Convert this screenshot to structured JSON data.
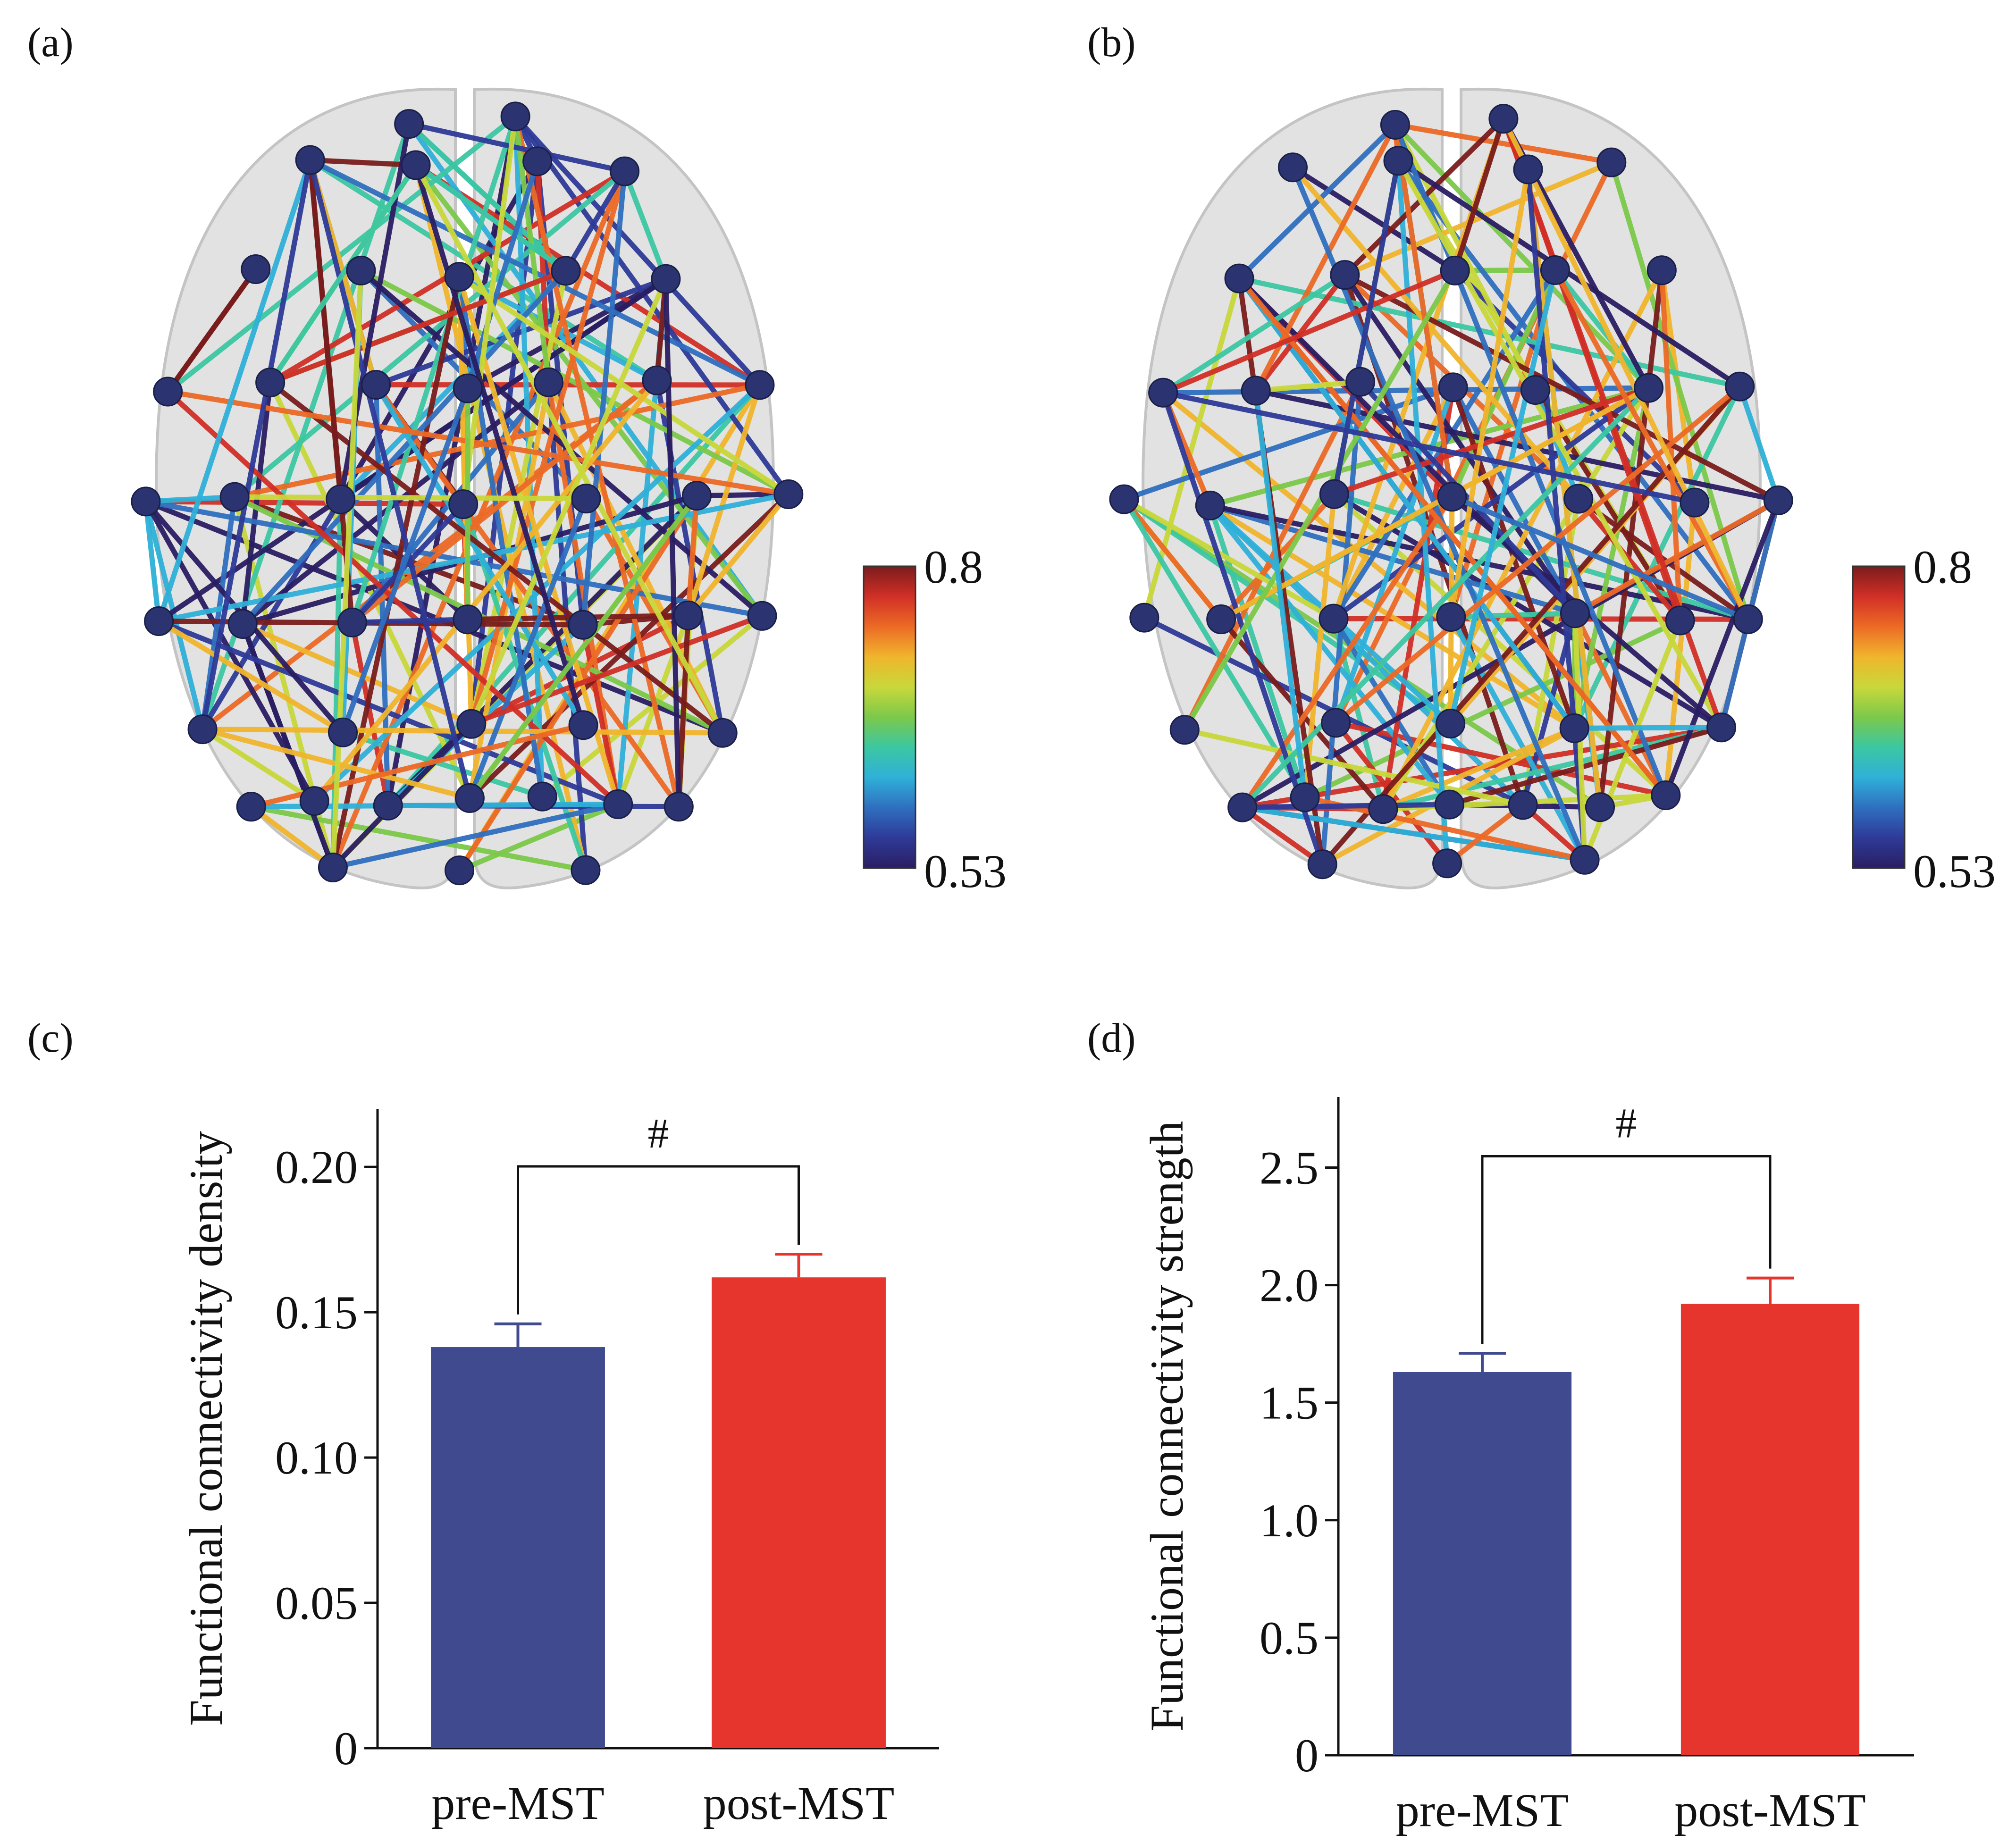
{
  "panels": {
    "a": {
      "label": "(a)",
      "colorbar": {
        "max_label": "0.8",
        "min_label": "0.53",
        "max": 0.8,
        "min": 0.53
      }
    },
    "b": {
      "label": "(b)",
      "colorbar": {
        "max_label": "0.8",
        "min_label": "0.53",
        "max": 0.8,
        "min": 0.53
      }
    },
    "c": {
      "label": "(c)"
    },
    "d": {
      "label": "(d)"
    }
  },
  "colors": {
    "pre": "#3f4a8f",
    "post": "#e5352d",
    "node": "#2b3470",
    "brain": "#d9d9d9"
  },
  "chart_data": [
    {
      "panel": "c",
      "type": "bar",
      "categories": [
        "pre-MST",
        "post-MST"
      ],
      "values": [
        0.138,
        0.162
      ],
      "errors": [
        0.008,
        0.008
      ],
      "ylabel": "Functional connectivity density",
      "xlabel": "",
      "ylim": [
        0,
        0.22
      ],
      "yticks": [
        0,
        0.05,
        0.1,
        0.15,
        0.2
      ],
      "ytick_labels": [
        "0",
        "0.05",
        "0.10",
        "0.15",
        "0.20"
      ],
      "significance": "#",
      "bar_colors": [
        "#3f4a8f",
        "#e5352d"
      ]
    },
    {
      "panel": "d",
      "type": "bar",
      "categories": [
        "pre-MST",
        "post-MST"
      ],
      "values": [
        1.63,
        1.92
      ],
      "errors": [
        0.08,
        0.11
      ],
      "ylabel": "Functional connectivity strength",
      "xlabel": "",
      "ylim": [
        0,
        2.8
      ],
      "yticks": [
        0,
        0.5,
        1.0,
        1.5,
        2.0,
        2.5
      ],
      "ytick_labels": [
        "0",
        "0.5",
        "1.0",
        "1.5",
        "2.0",
        "2.5"
      ],
      "significance": "#",
      "bar_colors": [
        "#3f4a8f",
        "#e5352d"
      ]
    }
  ]
}
